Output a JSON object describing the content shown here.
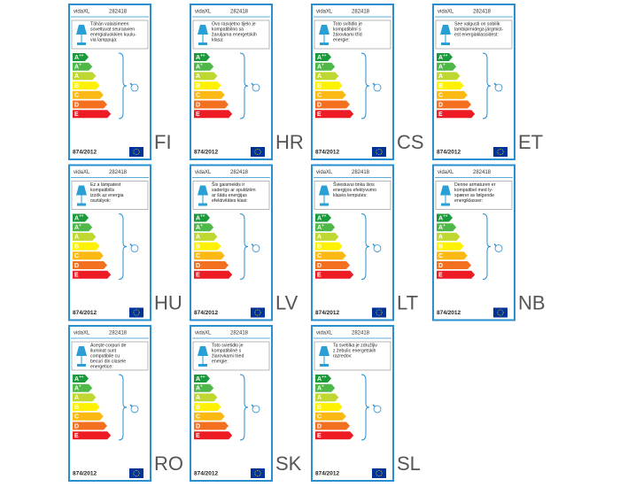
{
  "energy_classes": [
    {
      "letter": "A",
      "sup": "++",
      "color": "#1a9a3a"
    },
    {
      "letter": "A",
      "sup": "+",
      "color": "#50b848"
    },
    {
      "letter": "A",
      "sup": "",
      "color": "#bfd730"
    },
    {
      "letter": "B",
      "sup": "",
      "color": "#fff200"
    },
    {
      "letter": "C",
      "sup": "",
      "color": "#fdb913"
    },
    {
      "letter": "D",
      "sup": "",
      "color": "#f37021"
    },
    {
      "letter": "E",
      "sup": "",
      "color": "#ed1c24"
    }
  ],
  "labels": [
    {
      "brand": "vidaXL",
      "model": "282418",
      "text_lines": [
        "Tähän valaisimeen",
        "soveltuvat seuraavien",
        "energialuokkien kuulu-",
        "via lamppuja:"
      ],
      "regulation": "874/2012",
      "language": "FI"
    },
    {
      "brand": "vidaXL",
      "model": "282418",
      "text_lines": [
        "Ovo rasvjetno tijelo je",
        "kompatibilno sa",
        "žaruljama energetskih",
        "klasa:"
      ],
      "regulation": "874/2012",
      "language": "HR"
    },
    {
      "brand": "vidaXL",
      "model": "282418",
      "text_lines": [
        "Toto svítidlo je",
        "kompatibilní s",
        "žárovkami tříd",
        "energie:"
      ],
      "regulation": "874/2012",
      "language": "CS"
    },
    {
      "brand": "vidaXL",
      "model": "282418",
      "text_lines": [
        "See valgusti on sobilik",
        "lambipirnidega järgmist-",
        "est energiaklassidest:"
      ],
      "regulation": "874/2012",
      "language": "ET"
    },
    {
      "brand": "vidaXL",
      "model": "282418",
      "text_lines": [
        "Ez a lámpatest",
        "kompatibilis",
        "izzók az energia",
        "osztályok:"
      ],
      "regulation": "874/2012",
      "language": "HU"
    },
    {
      "brand": "vidaXL",
      "model": "282418",
      "text_lines": [
        "Šis gaismeklis ir",
        "saderīgs ar spuldzēm",
        "ar šādu enerģijas",
        "efektivitātes klasi:"
      ],
      "regulation": "874/2012",
      "language": "LV"
    },
    {
      "brand": "vidaXL",
      "model": "282418",
      "text_lines": [
        "Šviestuvui tinka šios",
        "energijos efektyvumo",
        "klasės lemputės:"
      ],
      "regulation": "874/2012",
      "language": "LT"
    },
    {
      "brand": "vidaXL",
      "model": "282418",
      "text_lines": [
        "Denne armaturen er",
        "kompatibel med ly-",
        "spærer av følgende",
        "energiklasser:"
      ],
      "regulation": "874/2012",
      "language": "NB"
    },
    {
      "brand": "vidaXL",
      "model": "282418",
      "text_lines": [
        "Acește corpuri de",
        "iluminat sunt",
        "compatibile cu",
        "becuri din clasele",
        "energetice:"
      ],
      "regulation": "874/2012",
      "language": "RO"
    },
    {
      "brand": "vidaXL",
      "model": "282418",
      "text_lines": [
        "Toto svietidlo je",
        "kompatibilné s",
        "žiarovkami tried",
        "energie:"
      ],
      "regulation": "874/2012",
      "language": "SK"
    },
    {
      "brand": "vidaXL",
      "model": "282418",
      "text_lines": [
        "Ta svetilka je združljiv",
        "z žebulic energetskih",
        "razredov:"
      ],
      "regulation": "874/2012",
      "language": "SL"
    }
  ]
}
